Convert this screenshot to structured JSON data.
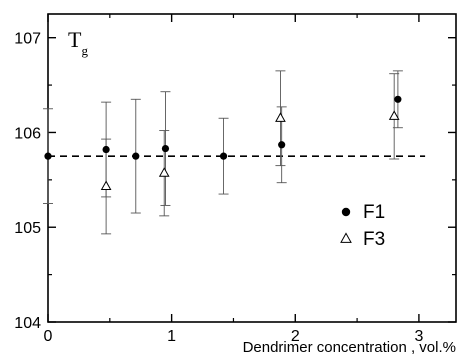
{
  "chart_data": {
    "type": "scatter",
    "title": "",
    "plot_label": "T",
    "plot_label_subscript": "g",
    "xlabel": "Dendrimer concentration , vol.%",
    "ylabel": "",
    "xlim": [
      0,
      3.3
    ],
    "ylim": [
      104,
      107.25
    ],
    "xticks": [
      0,
      1,
      2,
      3
    ],
    "xtick_labels": [
      "0",
      "1",
      "2",
      "3"
    ],
    "yticks": [
      104,
      105,
      106,
      107
    ],
    "ytick_labels": [
      "104",
      "105",
      "106",
      "107"
    ],
    "grid": false,
    "legend_position": "lower-right",
    "reference_line": {
      "style": "dashed",
      "y": 105.75
    },
    "series": [
      {
        "name": "F1",
        "marker": "filled-circle",
        "color": "#000000",
        "x": [
          0,
          0.47,
          0.71,
          0.95,
          1.42,
          1.89,
          2.83
        ],
        "y": [
          105.75,
          105.82,
          105.75,
          105.83,
          105.75,
          105.87,
          106.35
        ],
        "err": [
          0.5,
          0.5,
          0.6,
          0.6,
          0.4,
          0.4,
          0.3
        ]
      },
      {
        "name": "F3",
        "marker": "open-triangle",
        "color": "#000000",
        "x": [
          0.47,
          0.94,
          1.88,
          2.8
        ],
        "y": [
          105.43,
          105.57,
          106.15,
          106.17
        ],
        "err": [
          0.5,
          0.45,
          0.5,
          0.45
        ]
      }
    ]
  }
}
